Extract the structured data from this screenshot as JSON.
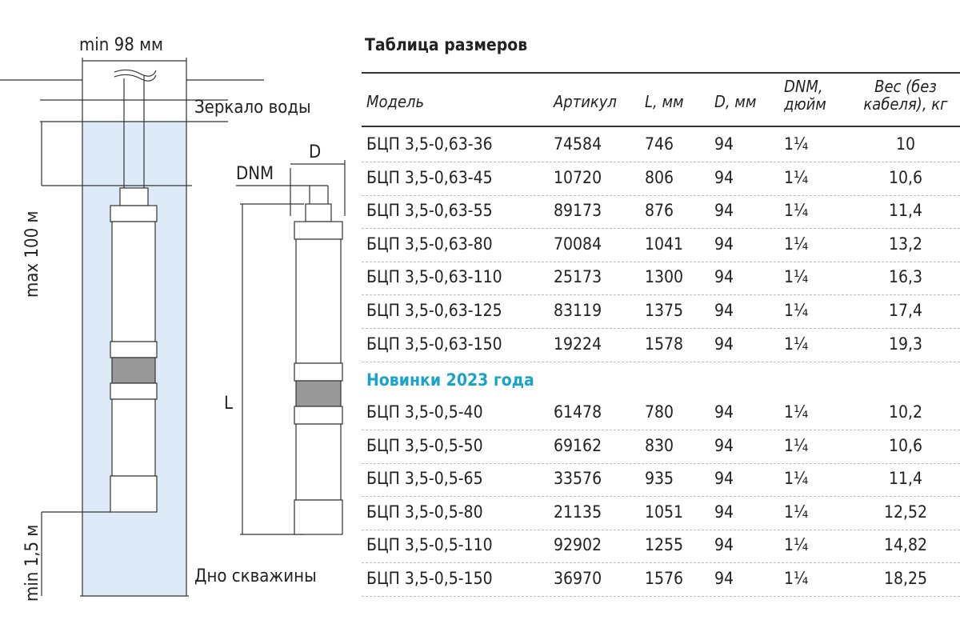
{
  "diagram": {
    "well_width": "min 98 мм",
    "water_level": "Зеркало воды",
    "max_depth": "max 100 м",
    "min_bottom": "min 1,5 м",
    "well_bottom": "Дно скважины",
    "dim_d": "D",
    "dim_dnm": "DNM",
    "dim_l": "L",
    "water_color": "#dcebf7"
  },
  "table": {
    "title": "Таблица размеров",
    "headers": [
      "Модель",
      "Артикул",
      "L, мм",
      "D, мм",
      "DNM, дюйм",
      "Вес (без кабеля), кг"
    ],
    "section_label": "Новинки 2023 года",
    "section_color": "#1aa3c9",
    "rows": [
      [
        "БЦП 3,5-0,63-36",
        "74584",
        "746",
        "94",
        "1¼",
        "10"
      ],
      [
        "БЦП 3,5-0,63-45",
        "10720",
        "806",
        "94",
        "1¼",
        "10,6"
      ],
      [
        "БЦП 3,5-0,63-55",
        "89173",
        "876",
        "94",
        "1¼",
        "11,4"
      ],
      [
        "БЦП 3,5-0,63-80",
        "70084",
        "1041",
        "94",
        "1¼",
        "13,2"
      ],
      [
        "БЦП 3,5-0,63-110",
        "25173",
        "1300",
        "94",
        "1¼",
        "16,3"
      ],
      [
        "БЦП 3,5-0,63-125",
        "83119",
        "1375",
        "94",
        "1¼",
        "17,4"
      ],
      [
        "БЦП 3,5-0,63-150",
        "19224",
        "1578",
        "94",
        "1¼",
        "19,3"
      ]
    ],
    "new_rows": [
      [
        "БЦП 3,5-0,5-40",
        "61478",
        "780",
        "94",
        "1¼",
        "10,2"
      ],
      [
        "БЦП 3,5-0,5-50",
        "69162",
        "830",
        "94",
        "1¼",
        "10,6"
      ],
      [
        "БЦП 3,5-0,5-65",
        "33576",
        "935",
        "94",
        "1¼",
        "11,4"
      ],
      [
        "БЦП 3,5-0,5-80",
        "21135",
        "1051",
        "94",
        "1¼",
        "12,52"
      ],
      [
        "БЦП 3,5-0,5-110",
        "92902",
        "1255",
        "94",
        "1¼",
        "14,82"
      ],
      [
        "БЦП 3,5-0,5-150",
        "36970",
        "1576",
        "94",
        "1¼",
        "18,25"
      ]
    ]
  }
}
